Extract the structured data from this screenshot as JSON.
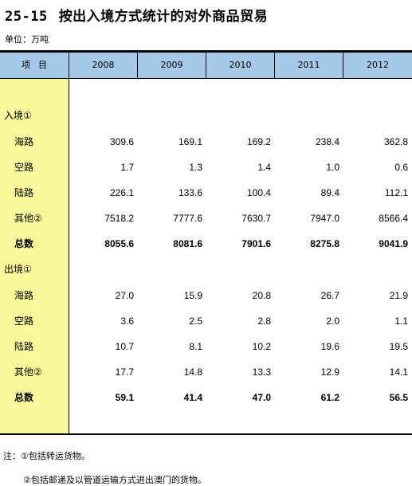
{
  "table_number": "25-15",
  "title": "按出入境方式统计的对外商品贸易",
  "unit": "单位：万吨",
  "header": {
    "item": "项目",
    "years": [
      "2008",
      "2009",
      "2010",
      "2011",
      "2012"
    ]
  },
  "sections": [
    {
      "label": "入境①",
      "rows": [
        {
          "label": "海路",
          "values": [
            "309.6",
            "169.1",
            "169.2",
            "238.4",
            "362.8"
          ]
        },
        {
          "label": "空路",
          "values": [
            "1.7",
            "1.3",
            "1.4",
            "1.0",
            "0.6"
          ]
        },
        {
          "label": "陆路",
          "values": [
            "226.1",
            "133.6",
            "100.4",
            "89.4",
            "112.1"
          ]
        },
        {
          "label": "其他②",
          "values": [
            "7518.2",
            "7777.6",
            "7630.7",
            "7947.0",
            "8566.4"
          ]
        },
        {
          "label": "总数",
          "values": [
            "8055.6",
            "8081.6",
            "7901.6",
            "8275.8",
            "9041.9"
          ],
          "bold": true
        }
      ]
    },
    {
      "label": "出境①",
      "rows": [
        {
          "label": "海路",
          "values": [
            "27.0",
            "15.9",
            "20.8",
            "26.7",
            "21.9"
          ]
        },
        {
          "label": "空路",
          "values": [
            "3.6",
            "2.5",
            "2.8",
            "2.0",
            "1.1"
          ]
        },
        {
          "label": "陆路",
          "values": [
            "10.7",
            "8.1",
            "10.2",
            "19.6",
            "19.5"
          ]
        },
        {
          "label": "其他②",
          "values": [
            "17.7",
            "14.8",
            "13.3",
            "12.9",
            "14.1"
          ]
        },
        {
          "label": "总数",
          "values": [
            "59.1",
            "41.4",
            "47.0",
            "61.2",
            "56.5"
          ],
          "bold": true
        }
      ]
    }
  ],
  "notes": [
    "注：①包括转运货物。",
    "②包括邮递及以管道运输方式进出澳门的货物。"
  ],
  "colors": {
    "header_bg": "#a6c9ea",
    "label_col_bg": "#fafa9c"
  }
}
